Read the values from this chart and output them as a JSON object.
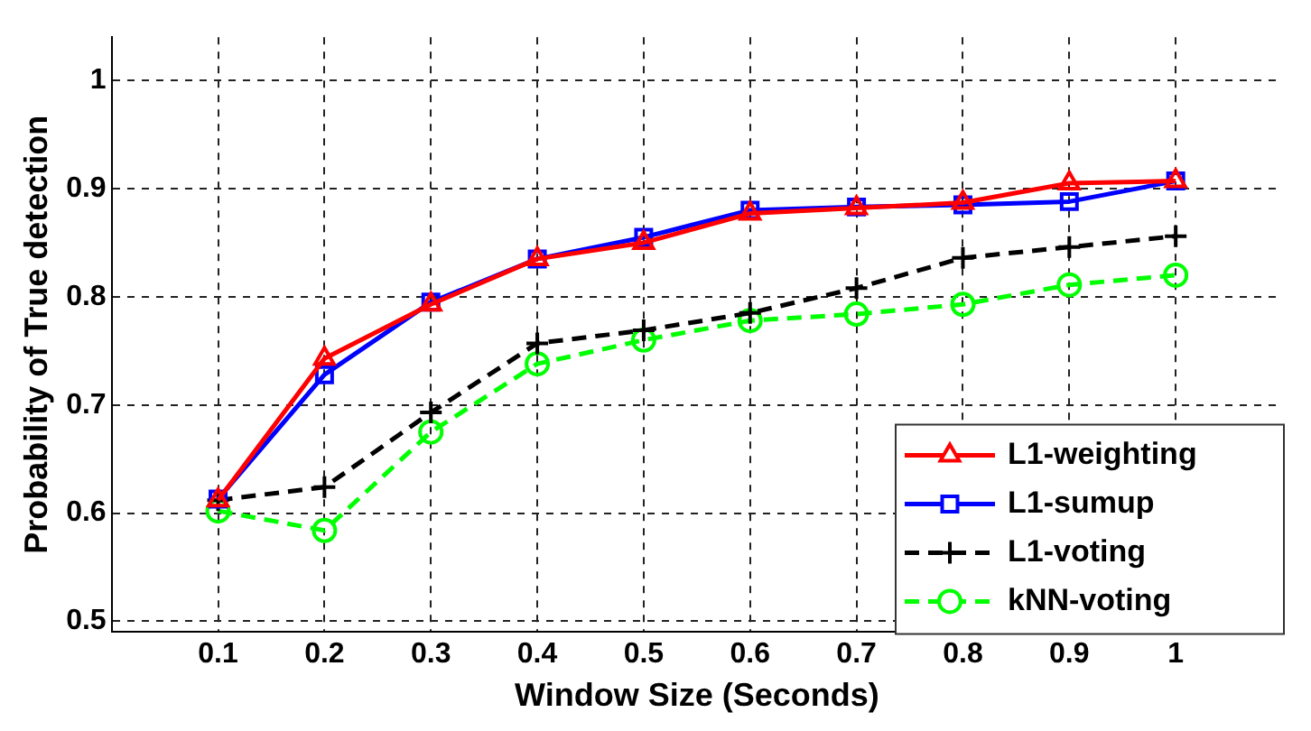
{
  "chart_data": {
    "type": "line",
    "xlabel": "Window Size (Seconds)",
    "ylabel": "Probability of True detection",
    "x": [
      0.1,
      0.2,
      0.3,
      0.4,
      0.5,
      0.6,
      0.7,
      0.8,
      0.9,
      1
    ],
    "series": [
      {
        "name": "L1-weighting",
        "color": "#ff0000",
        "marker": "triangle",
        "line_style": "solid",
        "values": [
          0.612,
          0.743,
          0.793,
          0.835,
          0.85,
          0.877,
          0.882,
          0.887,
          0.905,
          0.907
        ]
      },
      {
        "name": "L1-sumup",
        "color": "#0000ff",
        "marker": "square",
        "line_style": "solid",
        "values": [
          0.613,
          0.728,
          0.795,
          0.835,
          0.855,
          0.88,
          0.883,
          0.885,
          0.888,
          0.907
        ]
      },
      {
        "name": "L1-voting",
        "color": "#000000",
        "marker": "cross",
        "line_style": "dashed",
        "values": [
          0.612,
          0.624,
          0.693,
          0.757,
          0.769,
          0.785,
          0.808,
          0.836,
          0.846,
          0.856
        ]
      },
      {
        "name": "kNN-voting",
        "color": "#00ff00",
        "marker": "circle",
        "line_style": "dashed",
        "values": [
          0.602,
          0.584,
          0.675,
          0.738,
          0.76,
          0.778,
          0.784,
          0.793,
          0.811,
          0.82
        ]
      }
    ],
    "xlim": [
      0,
      1.1
    ],
    "xticks": [
      0.1,
      0.2,
      0.3,
      0.4,
      0.5,
      0.6,
      0.7,
      0.8,
      0.9,
      1
    ],
    "ylim": [
      0.49,
      1.04
    ],
    "yticks": [
      0.5,
      0.6,
      0.7,
      0.8,
      0.9,
      1
    ],
    "grid": true,
    "legend": "bottom right"
  }
}
